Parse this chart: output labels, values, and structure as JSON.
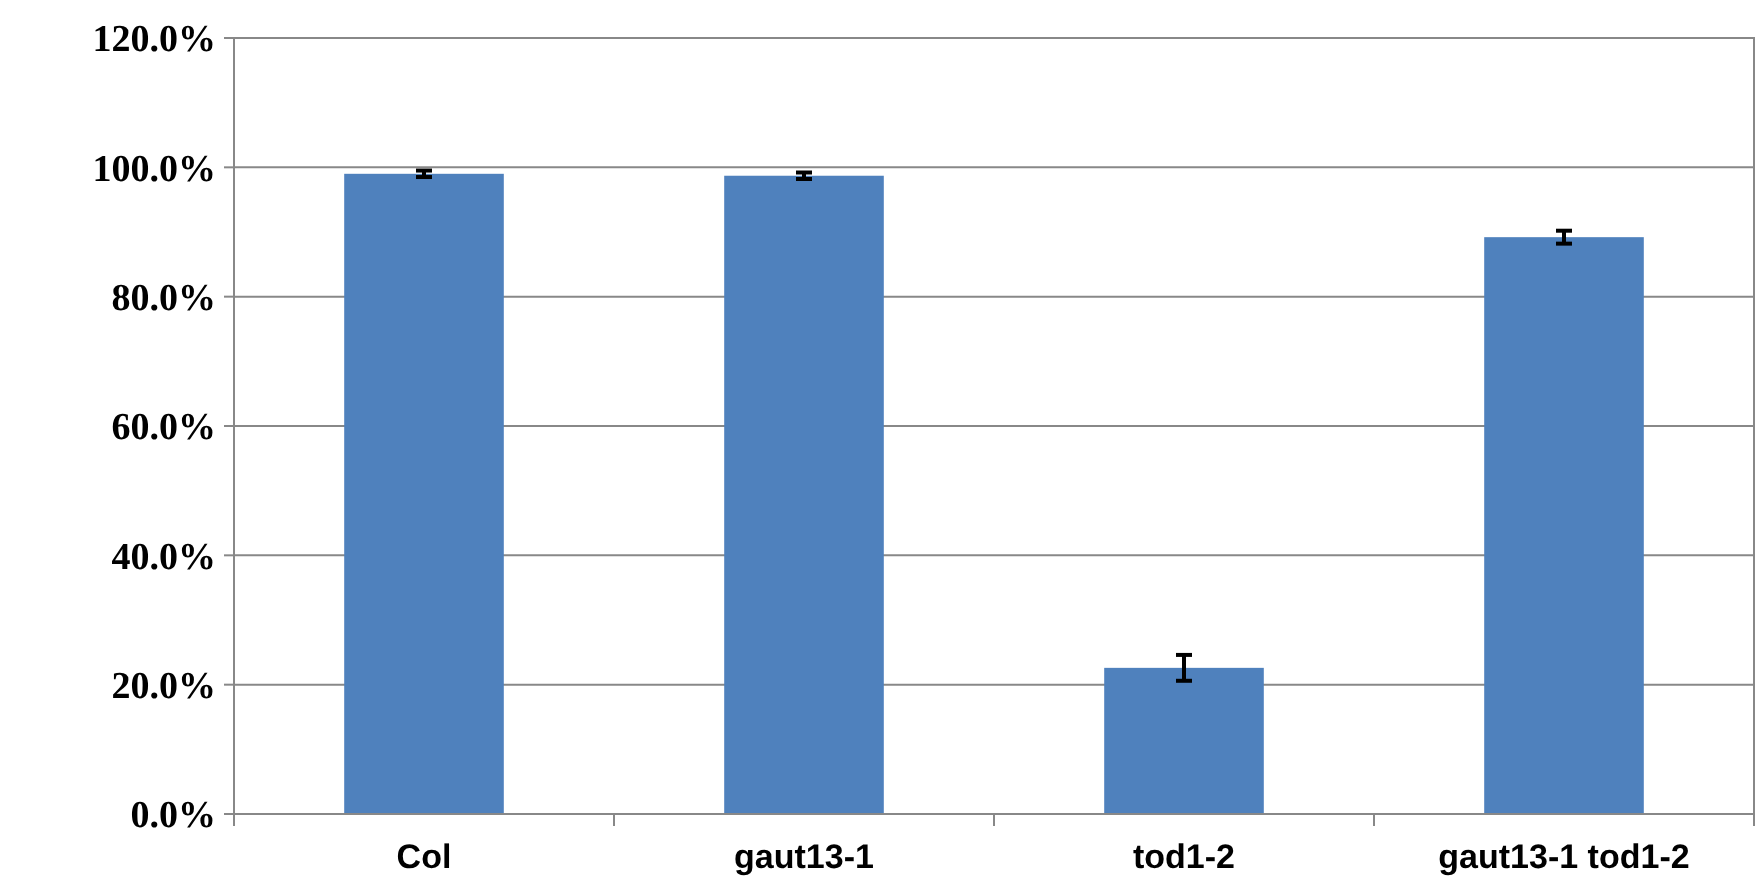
{
  "chart_data": {
    "type": "bar",
    "categories": [
      "Col",
      "gaut13-1",
      "tod1-2",
      "gaut13-1 tod1-2"
    ],
    "values": [
      99.0,
      98.7,
      22.6,
      89.2
    ],
    "errors": [
      0.5,
      0.5,
      2,
      1
    ],
    "color": "#4f81bd",
    "ylim": [
      0,
      120
    ],
    "yticks": [
      {
        "value": 0,
        "label": "0.0%"
      },
      {
        "value": 20,
        "label": "20.0%"
      },
      {
        "value": 40,
        "label": "40.0%"
      },
      {
        "value": 60,
        "label": "60.0%"
      },
      {
        "value": 80,
        "label": "80.0%"
      },
      {
        "value": 100,
        "label": "100.0%"
      },
      {
        "value": 120,
        "label": "120.0%"
      }
    ],
    "grid": "y"
  }
}
